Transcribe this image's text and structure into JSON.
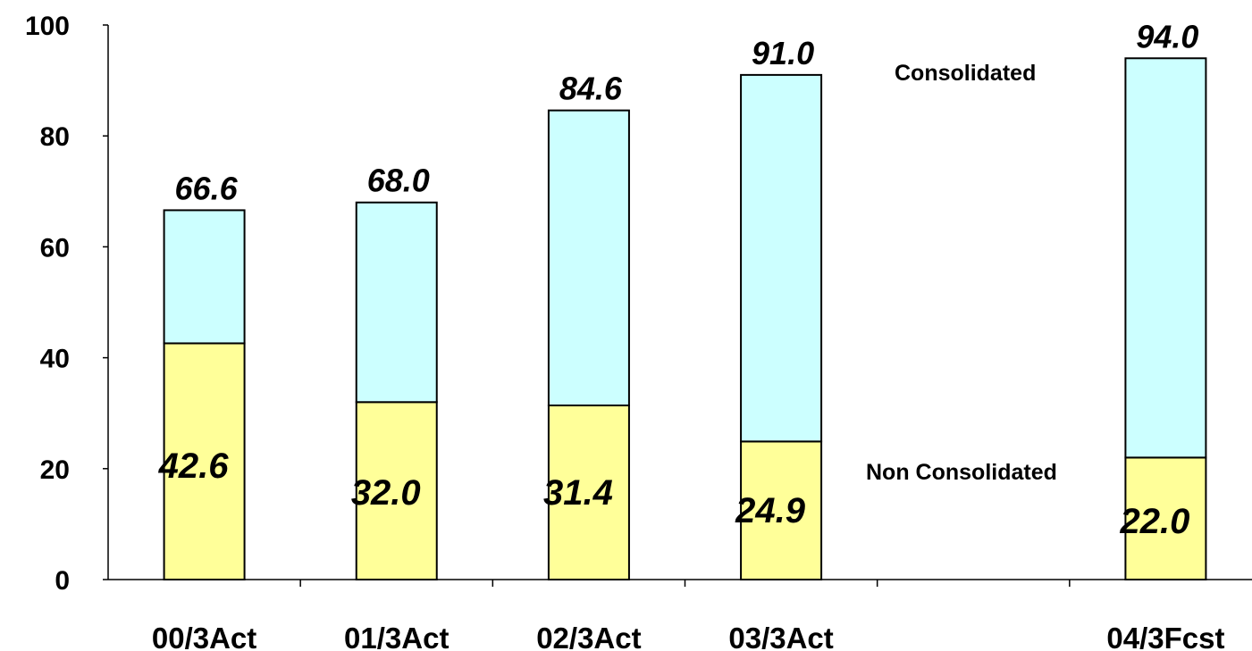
{
  "chart_data": {
    "type": "bar",
    "stacked": true,
    "categories": [
      "00/3Act",
      "01/3Act",
      "02/3Act",
      "03/3Act",
      "",
      "04/3Fcst"
    ],
    "series": [
      {
        "name": "Non Consolidated",
        "color": "#ffff99",
        "values": [
          42.6,
          32.0,
          31.4,
          24.9,
          null,
          22.0
        ],
        "labels": [
          "42.6",
          "32.0",
          "31.4",
          "24.9",
          "",
          "22.0"
        ]
      },
      {
        "name": "Consolidated",
        "color": "#ccffff",
        "values": [
          24.0,
          36.0,
          53.2,
          66.1,
          null,
          72.0
        ],
        "total_labels": [
          "66.6",
          "68.0",
          "84.6",
          "91.0",
          "",
          "94.0"
        ]
      }
    ],
    "totals": [
      66.6,
      68.0,
      84.6,
      91.0,
      null,
      94.0
    ],
    "y_ticks": [
      "0",
      "20",
      "40",
      "60",
      "80",
      "100"
    ],
    "ylim": [
      0,
      100
    ],
    "title": "",
    "xlabel": "",
    "ylabel": "",
    "grid": false,
    "legend": "inline labels at right"
  }
}
